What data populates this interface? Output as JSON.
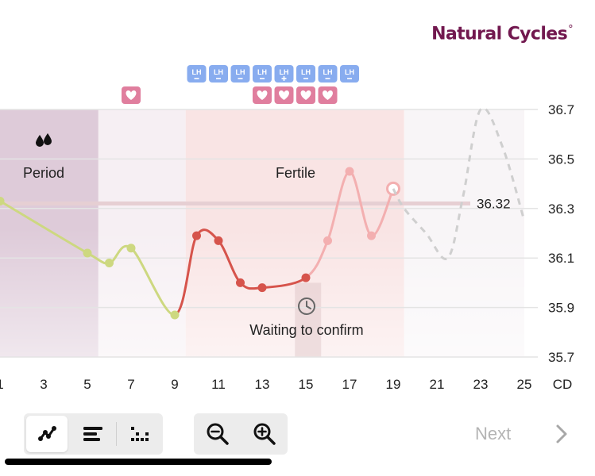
{
  "brand": {
    "name": "Natural Cycles",
    "mark": "°"
  },
  "chart_data": {
    "type": "line",
    "x_ticks": [
      1,
      3,
      5,
      7,
      9,
      11,
      13,
      15,
      17,
      19,
      21,
      23,
      25
    ],
    "x_unit": "CD",
    "y_ticks": [
      "36.7",
      "36.5",
      "36.3",
      "36.1",
      "35.9",
      "35.7"
    ],
    "ylim": [
      35.7,
      36.7
    ],
    "xlim": [
      0.9,
      25
    ],
    "grid": true,
    "threshold": {
      "value": 36.32,
      "label": "36.32"
    },
    "series": [
      {
        "points": [
          {
            "x": 1,
            "y": 36.33,
            "phase": "green"
          },
          {
            "x": 5,
            "y": 36.12,
            "phase": "green"
          },
          {
            "x": 6,
            "y": 36.08,
            "phase": "green"
          },
          {
            "x": 7,
            "y": 36.14,
            "phase": "green"
          },
          {
            "x": 9,
            "y": 35.87,
            "phase": "green"
          },
          {
            "x": 10,
            "y": 36.19,
            "phase": "red"
          },
          {
            "x": 11,
            "y": 36.17,
            "phase": "red"
          },
          {
            "x": 12,
            "y": 36.0,
            "phase": "red"
          },
          {
            "x": 13,
            "y": 35.98,
            "phase": "red"
          },
          {
            "x": 15,
            "y": 36.02,
            "phase": "red"
          },
          {
            "x": 16,
            "y": 36.17,
            "phase": "pink"
          },
          {
            "x": 17,
            "y": 36.45,
            "phase": "pink"
          },
          {
            "x": 18,
            "y": 36.19,
            "phase": "pink"
          },
          {
            "x": 19,
            "y": 36.38,
            "phase": "today"
          }
        ]
      }
    ],
    "prediction": [
      {
        "x": 19.5,
        "y": 36.3
      },
      {
        "x": 20.5,
        "y": 36.2
      },
      {
        "x": 21.5,
        "y": 36.1
      },
      {
        "x": 22.2,
        "y": 36.35
      },
      {
        "x": 23,
        "y": 36.7
      },
      {
        "x": 24,
        "y": 36.55
      },
      {
        "x": 25,
        "y": 36.25
      }
    ],
    "regions": [
      {
        "name": "Period",
        "from": 0.9,
        "to": 5.5,
        "color": "#decbd9"
      },
      {
        "name": "Fertile",
        "from": 9.5,
        "to": 19.5,
        "color": "#f9e4e4"
      },
      {
        "name": "",
        "from": 5.5,
        "to": 9.5,
        "color": "#f6eff3"
      },
      {
        "name": "",
        "from": 19.5,
        "to": 25,
        "color": "#f8f5f7"
      }
    ],
    "period_label": "Period",
    "fertile_label": "Fertile",
    "waiting_label": "Waiting to confirm",
    "lh_tests": [
      {
        "x": 10,
        "result": "negative"
      },
      {
        "x": 11,
        "result": "negative"
      },
      {
        "x": 12,
        "result": "negative"
      },
      {
        "x": 13,
        "result": "negative"
      },
      {
        "x": 14,
        "result": "positive"
      },
      {
        "x": 15,
        "result": "negative"
      },
      {
        "x": 16,
        "result": "negative"
      },
      {
        "x": 17,
        "result": "negative"
      }
    ],
    "lh_label": "LH",
    "intercourse_days": [
      7,
      13,
      14,
      15,
      16
    ]
  },
  "colors": {
    "green": "#cdd880",
    "red": "#d6544c",
    "pink": "#f3afb0",
    "grid": "#e4e4e4",
    "badge_heart": "#e07e9e",
    "badge_lh": "#88acef",
    "threshold": "#e6cfd3",
    "brand": "#72184f"
  },
  "toolbar": {
    "views": [
      {
        "name": "graph-view-button",
        "icon": "graph-icon",
        "active": true
      },
      {
        "name": "bars-view-button",
        "icon": "bars-icon",
        "active": false
      },
      {
        "name": "dots-view-button",
        "icon": "dots-grid-icon",
        "active": false
      }
    ],
    "zoom": [
      {
        "name": "zoom-out-button",
        "icon": "zoom-out-icon"
      },
      {
        "name": "zoom-in-button",
        "icon": "zoom-in-icon"
      }
    ]
  },
  "nav": {
    "next_label": "Next",
    "chevron_icon": "chevron-right-icon"
  }
}
